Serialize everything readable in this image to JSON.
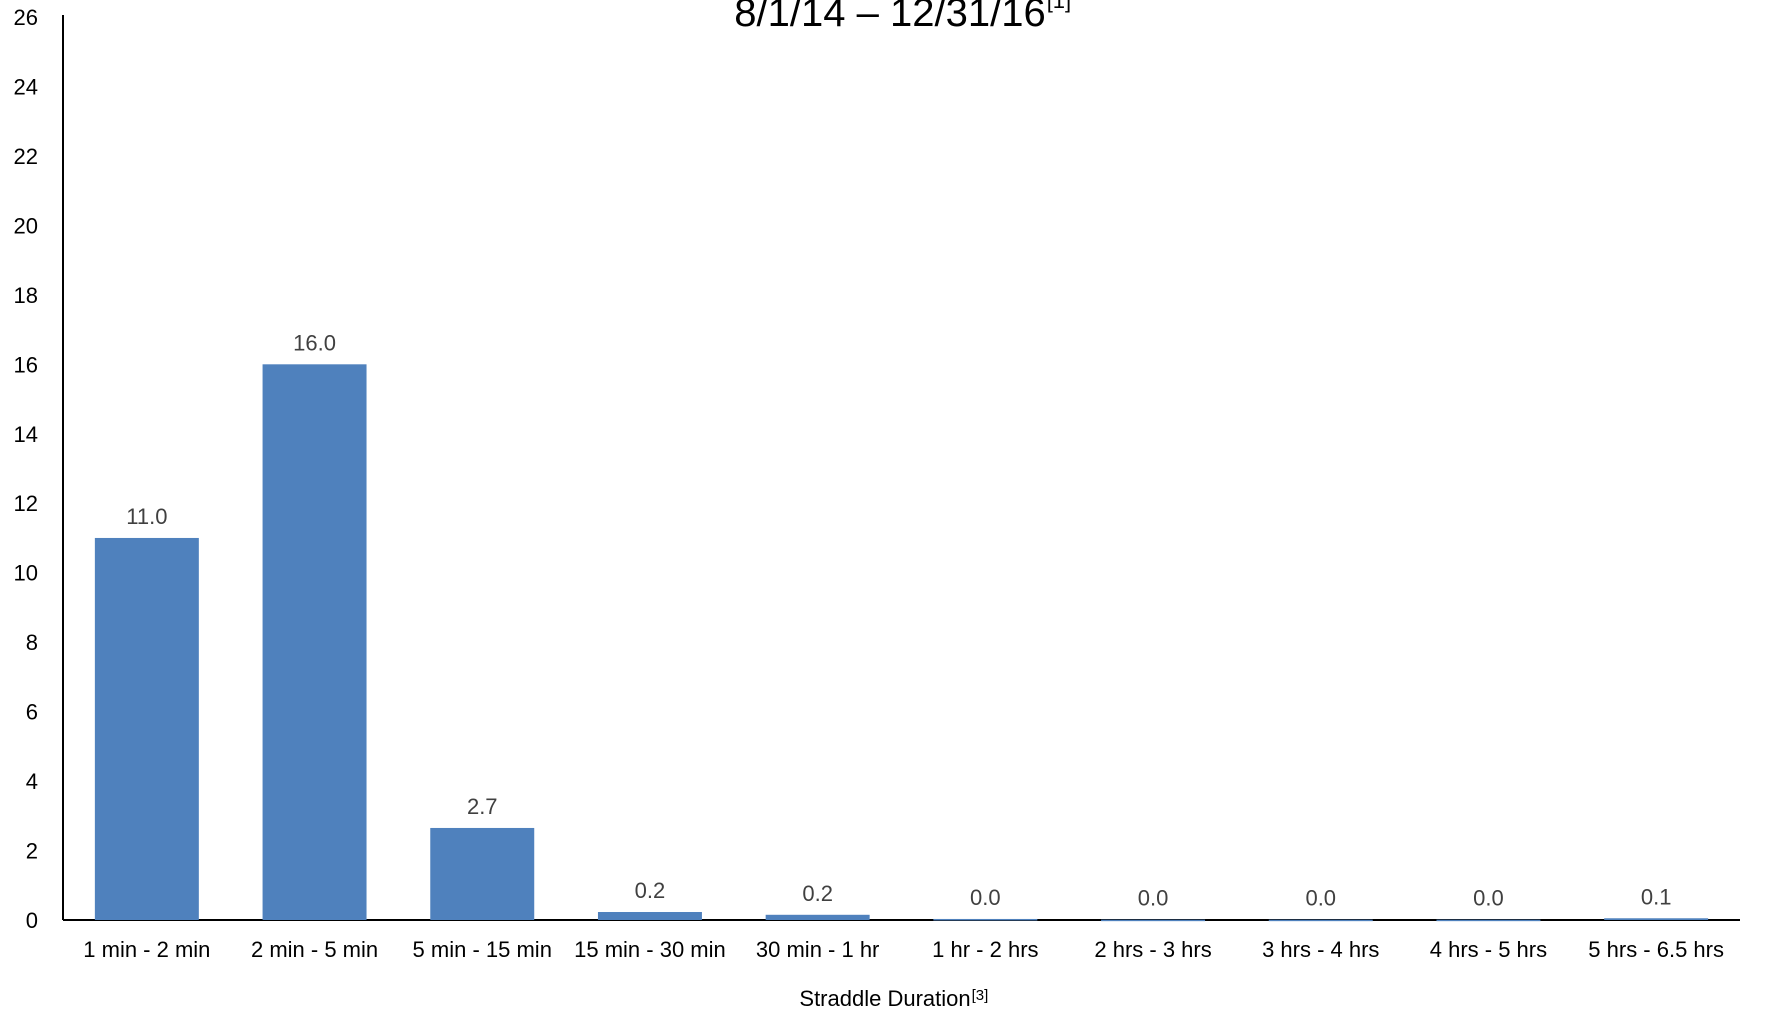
{
  "chart_data": {
    "type": "bar",
    "title": "8/1/14 – 12/31/16",
    "title_note": "[1]",
    "xlabel": "Straddle Duration",
    "xlabel_note": "[3]",
    "ylabel": "",
    "ylim": [
      0,
      26
    ],
    "yticks": [
      0,
      2,
      4,
      6,
      8,
      10,
      12,
      14,
      16,
      18,
      20,
      22,
      24,
      26
    ],
    "categories": [
      "1 min - 2 min",
      "2 min - 5 min",
      "5 min - 15 min",
      "15 min - 30 min",
      "30 min - 1 hr",
      "1 hr - 2 hrs",
      "2 hrs - 3 hrs",
      "3 hrs - 4 hrs",
      "4 hrs - 5 hrs",
      "5 hrs - 6.5 hrs"
    ],
    "values": [
      11.0,
      16.0,
      2.65,
      0.23,
      0.15,
      0.03,
      0.01,
      0.01,
      0.01,
      0.05
    ],
    "data_labels": [
      "11.0",
      "16.0",
      "2.7",
      "0.2",
      "0.2",
      "0.0",
      "0.0",
      "0.0",
      "0.0",
      "0.1"
    ],
    "bar_color": "#4f81bd",
    "grid": false,
    "legend": "none"
  }
}
